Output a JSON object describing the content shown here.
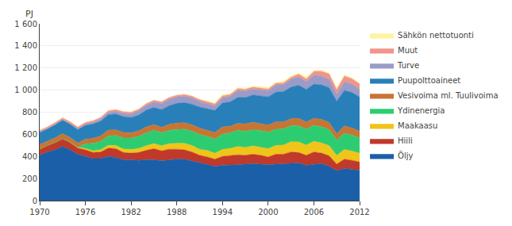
{
  "chart_data": {
    "type": "area",
    "stacked": true,
    "ylabel": "PJ",
    "x": [
      1970,
      1971,
      1972,
      1973,
      1974,
      1975,
      1976,
      1977,
      1978,
      1979,
      1980,
      1981,
      1982,
      1983,
      1984,
      1985,
      1986,
      1987,
      1988,
      1989,
      1990,
      1991,
      1992,
      1993,
      1994,
      1995,
      1996,
      1997,
      1998,
      1999,
      2000,
      2001,
      2002,
      2003,
      2004,
      2005,
      2006,
      2007,
      2008,
      2009,
      2010,
      2011,
      2012
    ],
    "series": [
      {
        "name": "Öljy",
        "color": "#1a5fa8",
        "values": [
          410,
          440,
          460,
          490,
          460,
          420,
          400,
          380,
          380,
          400,
          390,
          370,
          370,
          365,
          370,
          370,
          360,
          370,
          375,
          375,
          360,
          340,
          330,
          310,
          320,
          320,
          325,
          330,
          335,
          330,
          325,
          330,
          335,
          340,
          340,
          320,
          330,
          335,
          310,
          270,
          290,
          285,
          275
        ]
      },
      {
        "name": "Hiili",
        "color": "#c0392b",
        "values": [
          55,
          58,
          65,
          70,
          65,
          55,
          60,
          55,
          60,
          75,
          80,
          65,
          60,
          70,
          85,
          100,
          90,
          95,
          90,
          85,
          80,
          70,
          65,
          65,
          80,
          85,
          90,
          80,
          85,
          80,
          70,
          90,
          85,
          100,
          95,
          90,
          110,
          95,
          95,
          60,
          85,
          80,
          75
        ]
      },
      {
        "name": "Maakaasu",
        "color": "#f0c419",
        "values": [
          0,
          0,
          0,
          0,
          4,
          8,
          12,
          16,
          20,
          25,
          28,
          32,
          33,
          37,
          42,
          46,
          46,
          50,
          54,
          58,
          58,
          54,
          58,
          54,
          63,
          67,
          75,
          71,
          75,
          75,
          75,
          79,
          83,
          92,
          96,
          92,
          96,
          92,
          92,
          79,
          88,
          83,
          79
        ]
      },
      {
        "name": "Ydinenergia",
        "color": "#2ecc71",
        "values": [
          0,
          0,
          0,
          0,
          0,
          0,
          42,
          67,
          75,
          84,
          92,
          100,
          104,
          109,
          117,
          121,
          117,
          121,
          125,
          129,
          129,
          134,
          129,
          129,
          138,
          142,
          146,
          146,
          146,
          150,
          150,
          146,
          146,
          146,
          146,
          146,
          146,
          146,
          146,
          138,
          146,
          146,
          138
        ]
      },
      {
        "name": "Vesivoima ml. Tuulivoima",
        "color": "#c87533",
        "values": [
          42,
          38,
          42,
          46,
          42,
          38,
          42,
          46,
          50,
          54,
          50,
          50,
          46,
          50,
          54,
          50,
          50,
          54,
          58,
          58,
          58,
          58,
          54,
          58,
          67,
          58,
          63,
          67,
          67,
          63,
          63,
          67,
          63,
          63,
          67,
          63,
          63,
          67,
          63,
          58,
          67,
          63,
          63
        ]
      },
      {
        "name": "Puupolttoaineet",
        "color": "#2980b9",
        "values": [
          110,
          112,
          118,
          122,
          122,
          122,
          126,
          130,
          135,
          139,
          143,
          143,
          139,
          143,
          152,
          156,
          161,
          169,
          178,
          182,
          187,
          191,
          196,
          200,
          217,
          221,
          235,
          239,
          248,
          252,
          256,
          270,
          274,
          287,
          300,
          295,
          309,
          313,
          317,
          295,
          322,
          322,
          309
        ]
      },
      {
        "name": "Turve",
        "color": "#9b9bc8",
        "values": [
          5,
          5,
          5,
          5,
          5,
          8,
          10,
          13,
          17,
          21,
          25,
          29,
          33,
          38,
          42,
          50,
          54,
          58,
          58,
          58,
          58,
          50,
          46,
          42,
          46,
          50,
          63,
          58,
          54,
          54,
          54,
          63,
          63,
          71,
          75,
          71,
          83,
          79,
          75,
          63,
          79,
          75,
          67
        ]
      },
      {
        "name": "Muut",
        "color": "#f1948a",
        "values": [
          15,
          15,
          17,
          17,
          17,
          17,
          17,
          17,
          17,
          17,
          17,
          17,
          17,
          17,
          17,
          17,
          17,
          17,
          17,
          17,
          17,
          17,
          17,
          17,
          17,
          17,
          17,
          17,
          17,
          17,
          17,
          17,
          17,
          17,
          25,
          25,
          33,
          42,
          50,
          42,
          50,
          50,
          50
        ]
      },
      {
        "name": "Sähkön nettotuonti",
        "color": "#fef3a0",
        "values": [
          0,
          0,
          0,
          0,
          0,
          0,
          0,
          0,
          0,
          0,
          0,
          0,
          0,
          0,
          0,
          0,
          0,
          0,
          0,
          0,
          0,
          4,
          8,
          13,
          13,
          8,
          8,
          8,
          8,
          13,
          13,
          8,
          13,
          13,
          13,
          17,
          8,
          13,
          8,
          17,
          13,
          8,
          8
        ]
      }
    ],
    "xlim": [
      1970,
      2012
    ],
    "xticks": [
      1970,
      1976,
      1982,
      1988,
      1994,
      2000,
      2006,
      2012
    ],
    "ylim": [
      0,
      1600
    ],
    "yticks": [
      0,
      200,
      400,
      600,
      800,
      {
        "value": 1000,
        "label": "1 000"
      },
      {
        "value": 1200,
        "label": "1 200"
      },
      {
        "value": 1400,
        "label": "1 400"
      },
      {
        "value": 1600,
        "label": "1 600"
      }
    ],
    "grid": "y",
    "legend": "upper right"
  }
}
